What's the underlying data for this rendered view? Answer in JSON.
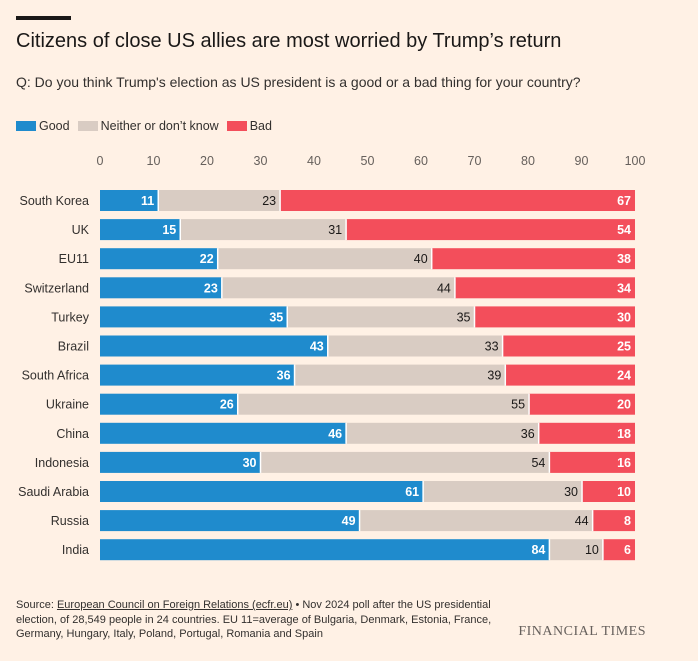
{
  "title": "Citizens of close US allies are most worried by Trump’s return",
  "subtitle": "Q: Do you think Trump's election as US president is a good or a bad thing for your country?",
  "legend": {
    "items": [
      {
        "label": "Good",
        "color": "#1f8bcd"
      },
      {
        "label": "Neither or don’t know",
        "color": "#d9ccc3"
      },
      {
        "label": "Bad",
        "color": "#f34e5b"
      }
    ]
  },
  "chart_data": {
    "type": "bar",
    "orientation": "horizontal",
    "stacked": true,
    "xlim": [
      0,
      100
    ],
    "xticks": [
      0,
      10,
      20,
      30,
      40,
      50,
      60,
      70,
      80,
      90,
      100
    ],
    "axis_position": "top",
    "grid": false,
    "categories": [
      "South Korea",
      "UK",
      "EU11",
      "Switzerland",
      "Turkey",
      "Brazil",
      "South Africa",
      "Ukraine",
      "China",
      "Indonesia",
      "Saudi Arabia",
      "Russia",
      "India"
    ],
    "series": [
      {
        "name": "Good",
        "color": "#1f8bcd",
        "values": [
          11,
          15,
          22,
          23,
          35,
          43,
          36,
          26,
          46,
          30,
          61,
          49,
          84
        ]
      },
      {
        "name": "Neither or don’t know",
        "color": "#d9ccc3",
        "values": [
          23,
          31,
          40,
          44,
          35,
          33,
          39,
          55,
          36,
          54,
          30,
          44,
          10
        ]
      },
      {
        "name": "Bad",
        "color": "#f34e5b",
        "values": [
          67,
          54,
          38,
          34,
          30,
          25,
          24,
          20,
          18,
          16,
          10,
          8,
          6
        ]
      }
    ]
  },
  "source": {
    "prefix": "Source: ",
    "link_text": "European Council on Foreign Relations (ecfr.eu)",
    "text": " • Nov 2024 poll after the US presidential election, of 28,549 people in 24 countries. EU 11=average of Bulgaria, Denmark, Estonia, France, Germany, Hungary, Italy, Poland, Portugal, Romania and Spain"
  },
  "brand": "FINANCIAL TIMES"
}
